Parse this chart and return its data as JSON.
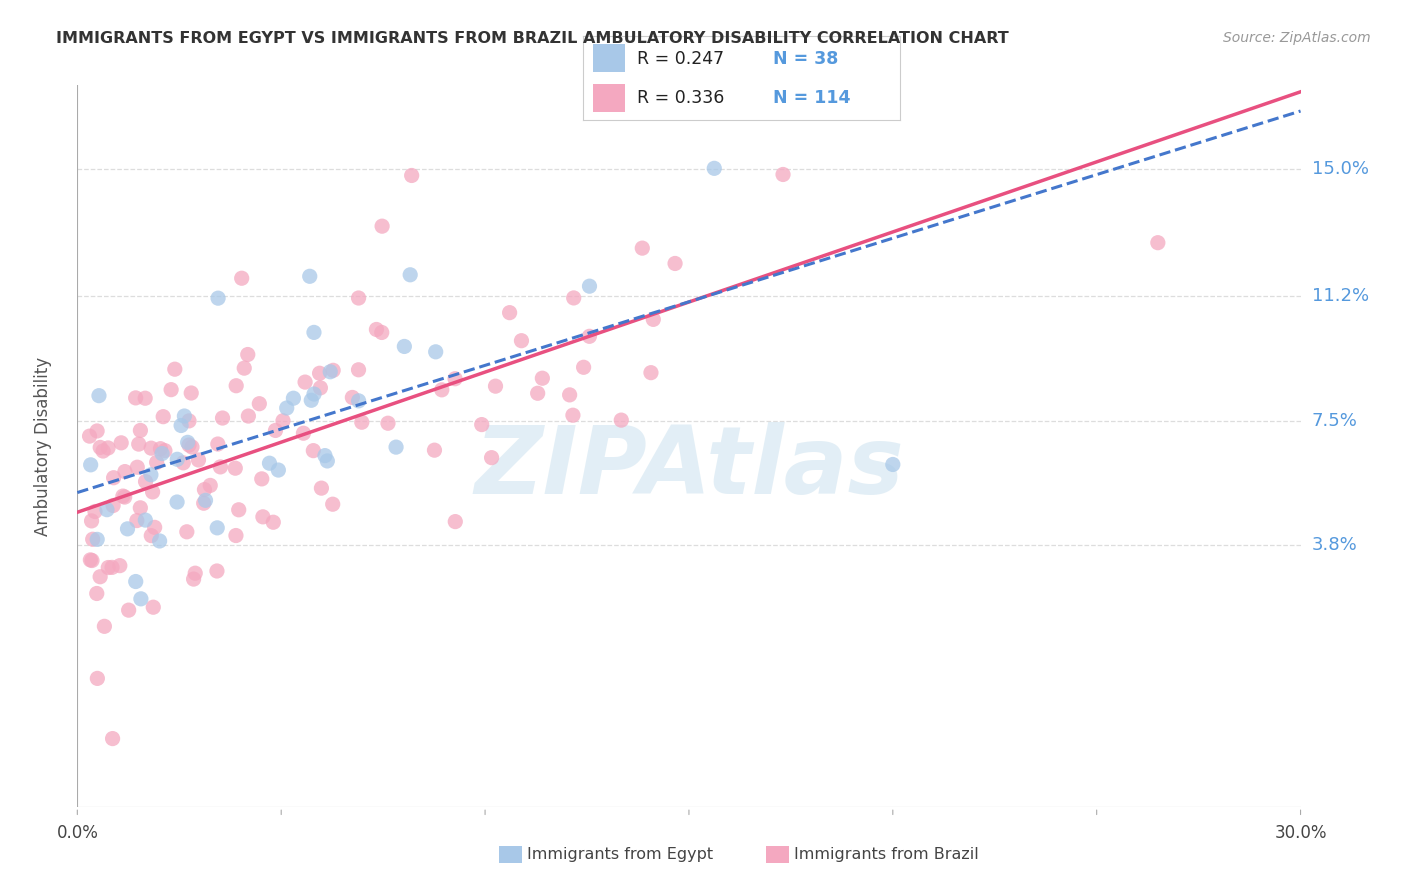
{
  "title": "IMMIGRANTS FROM EGYPT VS IMMIGRANTS FROM BRAZIL AMBULATORY DISABILITY CORRELATION CHART",
  "source": "Source: ZipAtlas.com",
  "ylabel": "Ambulatory Disability",
  "ytick_labels": [
    "15.0%",
    "11.2%",
    "7.5%",
    "3.8%"
  ],
  "ytick_values": [
    0.15,
    0.112,
    0.075,
    0.038
  ],
  "xlim": [
    0.0,
    0.3
  ],
  "ylim": [
    -0.04,
    0.175
  ],
  "legend_egypt_R": "0.247",
  "legend_egypt_N": "38",
  "legend_brazil_R": "0.336",
  "legend_brazil_N": "114",
  "egypt_color": "#a8c8e8",
  "brazil_color": "#f4a8c0",
  "egypt_line_color": "#4477cc",
  "brazil_line_color": "#e85080",
  "watermark": "ZIPAtlas",
  "title_color": "#333333",
  "source_color": "#999999",
  "ytick_color": "#5599dd",
  "grid_color": "#dddddd",
  "background_color": "#ffffff"
}
